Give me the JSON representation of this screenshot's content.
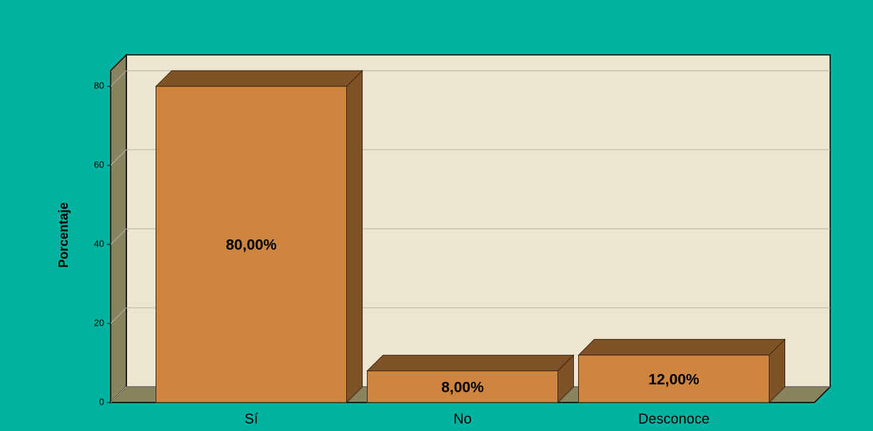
{
  "chart_data": {
    "type": "bar3d",
    "y_label": "Porcentaje",
    "categories": [
      "Sí",
      "No",
      "Desconoce"
    ],
    "values": [
      80,
      8,
      12
    ],
    "value_labels": [
      "80,00%",
      "8,00%",
      "12,00%"
    ],
    "color": "#cd853f",
    "ylim": [
      0,
      84
    ],
    "yticks": [
      0,
      20,
      40,
      60,
      80
    ],
    "grid": true
  }
}
